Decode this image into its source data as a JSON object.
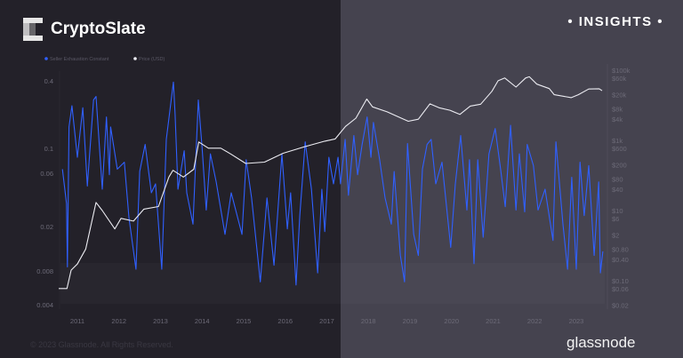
{
  "header": {
    "logo_text": "CryptoSlate",
    "badge": "• INSIGHTS •"
  },
  "footer": {
    "copyright": "© 2023 Glassnode. All Rights Reserved.",
    "brand": "glassnode"
  },
  "colors": {
    "sec": "#3060ff",
    "price": "#ececf2",
    "bg_left": "#232129",
    "bg_right": "#45434f"
  },
  "chart_data": {
    "type": "line",
    "legend": [
      "Seller Exhaustion Constant",
      "Price (USD)"
    ],
    "legend_placement": "top-left",
    "grid": false,
    "x_ticks": [
      "2011",
      "2012",
      "2013",
      "2014",
      "2015",
      "2016",
      "2017",
      "2018",
      "2019",
      "2020",
      "2021",
      "2022",
      "2023"
    ],
    "y_left": {
      "scale": "log",
      "ticks": [
        "0.4",
        "0.1",
        "0.06",
        "0.02",
        "0.008",
        "0.004"
      ],
      "tick_values": [
        0.4,
        0.1,
        0.06,
        0.02,
        0.008,
        0.004
      ]
    },
    "y_right": {
      "scale": "log",
      "ticks": [
        "$100k",
        "$60k",
        "$20k",
        "$8k",
        "$4k",
        "$1k",
        "$600",
        "$200",
        "$80",
        "$40",
        "$10",
        "$6",
        "$2",
        "$0.80",
        "$0.40",
        "$0.10",
        "$0.06",
        "$0.02"
      ],
      "tick_values": [
        100000,
        60000,
        20000,
        8000,
        4000,
        1000,
        600,
        200,
        80,
        40,
        10,
        6,
        2,
        0.8,
        0.4,
        0.1,
        0.06,
        0.02
      ]
    },
    "series": [
      {
        "name": "Seller Exhaustion Constant",
        "axis": "left",
        "points": [
          [
            2010.64,
            0.065
          ],
          [
            2010.74,
            0.032
          ],
          [
            2010.76,
            0.0087
          ],
          [
            2010.8,
            0.155
          ],
          [
            2010.87,
            0.24
          ],
          [
            2011.0,
            0.083
          ],
          [
            2011.13,
            0.23
          ],
          [
            2011.24,
            0.046
          ],
          [
            2011.39,
            0.27
          ],
          [
            2011.45,
            0.29
          ],
          [
            2011.6,
            0.043
          ],
          [
            2011.7,
            0.19
          ],
          [
            2011.77,
            0.058
          ],
          [
            2011.8,
            0.155
          ],
          [
            2011.96,
            0.065
          ],
          [
            2012.13,
            0.075
          ],
          [
            2012.24,
            0.024
          ],
          [
            2012.41,
            0.0083
          ],
          [
            2012.5,
            0.062
          ],
          [
            2012.63,
            0.108
          ],
          [
            2012.78,
            0.04
          ],
          [
            2012.88,
            0.048
          ],
          [
            2013.03,
            0.0083
          ],
          [
            2013.14,
            0.12
          ],
          [
            2013.31,
            0.39
          ],
          [
            2013.35,
            0.2
          ],
          [
            2013.42,
            0.043
          ],
          [
            2013.57,
            0.095
          ],
          [
            2013.63,
            0.04
          ],
          [
            2013.78,
            0.021
          ],
          [
            2013.91,
            0.27
          ],
          [
            2014.0,
            0.1
          ],
          [
            2014.1,
            0.028
          ],
          [
            2014.2,
            0.089
          ],
          [
            2014.34,
            0.05
          ],
          [
            2014.55,
            0.017
          ],
          [
            2014.7,
            0.04
          ],
          [
            2014.96,
            0.017
          ],
          [
            2015.06,
            0.079
          ],
          [
            2015.19,
            0.036
          ],
          [
            2015.4,
            0.0064
          ],
          [
            2015.56,
            0.036
          ],
          [
            2015.73,
            0.009
          ],
          [
            2015.92,
            0.089
          ],
          [
            2016.05,
            0.019
          ],
          [
            2016.13,
            0.04
          ],
          [
            2016.26,
            0.006
          ],
          [
            2016.35,
            0.025
          ],
          [
            2016.48,
            0.114
          ],
          [
            2016.63,
            0.043
          ],
          [
            2016.78,
            0.0077
          ],
          [
            2016.88,
            0.043
          ],
          [
            2016.95,
            0.018
          ],
          [
            2017.05,
            0.083
          ],
          [
            2017.16,
            0.048
          ],
          [
            2017.27,
            0.083
          ],
          [
            2017.33,
            0.048
          ],
          [
            2017.44,
            0.12
          ],
          [
            2017.52,
            0.038
          ],
          [
            2017.65,
            0.13
          ],
          [
            2017.74,
            0.058
          ],
          [
            2017.85,
            0.108
          ],
          [
            2017.97,
            0.19
          ],
          [
            2018.06,
            0.083
          ],
          [
            2018.12,
            0.17
          ],
          [
            2018.27,
            0.079
          ],
          [
            2018.4,
            0.036
          ],
          [
            2018.55,
            0.021
          ],
          [
            2018.62,
            0.062
          ],
          [
            2018.77,
            0.011
          ],
          [
            2018.87,
            0.0064
          ],
          [
            2018.94,
            0.11
          ],
          [
            2019.09,
            0.017
          ],
          [
            2019.2,
            0.011
          ],
          [
            2019.3,
            0.065
          ],
          [
            2019.41,
            0.108
          ],
          [
            2019.51,
            0.12
          ],
          [
            2019.62,
            0.048
          ],
          [
            2019.77,
            0.075
          ],
          [
            2019.98,
            0.013
          ],
          [
            2020.09,
            0.048
          ],
          [
            2020.22,
            0.13
          ],
          [
            2020.37,
            0.028
          ],
          [
            2020.43,
            0.079
          ],
          [
            2020.54,
            0.0093
          ],
          [
            2020.63,
            0.079
          ],
          [
            2020.76,
            0.016
          ],
          [
            2020.9,
            0.089
          ],
          [
            2021.05,
            0.15
          ],
          [
            2021.18,
            0.065
          ],
          [
            2021.29,
            0.03
          ],
          [
            2021.42,
            0.16
          ],
          [
            2021.55,
            0.028
          ],
          [
            2021.63,
            0.089
          ],
          [
            2021.76,
            0.027
          ],
          [
            2021.82,
            0.108
          ],
          [
            2021.97,
            0.07
          ],
          [
            2022.08,
            0.028
          ],
          [
            2022.25,
            0.043
          ],
          [
            2022.44,
            0.015
          ],
          [
            2022.51,
            0.114
          ],
          [
            2022.68,
            0.021
          ],
          [
            2022.79,
            0.0083
          ],
          [
            2022.89,
            0.055
          ],
          [
            2023.0,
            0.0083
          ],
          [
            2023.09,
            0.075
          ],
          [
            2023.19,
            0.025
          ],
          [
            2023.3,
            0.07
          ],
          [
            2023.43,
            0.011
          ],
          [
            2023.54,
            0.05
          ],
          [
            2023.58,
            0.0077
          ],
          [
            2023.64,
            0.012
          ]
        ]
      },
      {
        "name": "Price (USD)",
        "axis": "right",
        "points": [
          [
            2010.55,
            0.06
          ],
          [
            2010.75,
            0.06
          ],
          [
            2010.85,
            0.2
          ],
          [
            2011.0,
            0.3
          ],
          [
            2011.2,
            0.8
          ],
          [
            2011.45,
            17
          ],
          [
            2011.6,
            10
          ],
          [
            2011.9,
            3
          ],
          [
            2012.05,
            6
          ],
          [
            2012.35,
            5
          ],
          [
            2012.6,
            11
          ],
          [
            2012.95,
            13
          ],
          [
            2013.2,
            90
          ],
          [
            2013.3,
            140
          ],
          [
            2013.55,
            90
          ],
          [
            2013.8,
            150
          ],
          [
            2013.92,
            900
          ],
          [
            2014.15,
            600
          ],
          [
            2014.45,
            600
          ],
          [
            2014.7,
            400
          ],
          [
            2015.05,
            220
          ],
          [
            2015.5,
            240
          ],
          [
            2015.95,
            430
          ],
          [
            2016.45,
            650
          ],
          [
            2016.95,
            950
          ],
          [
            2017.2,
            1100
          ],
          [
            2017.45,
            2500
          ],
          [
            2017.7,
            4300
          ],
          [
            2017.96,
            15000
          ],
          [
            2018.1,
            9000
          ],
          [
            2018.45,
            6500
          ],
          [
            2018.85,
            4000
          ],
          [
            2018.96,
            3500
          ],
          [
            2019.2,
            4000
          ],
          [
            2019.48,
            11000
          ],
          [
            2019.7,
            8500
          ],
          [
            2019.96,
            7200
          ],
          [
            2020.2,
            5500
          ],
          [
            2020.45,
            9500
          ],
          [
            2020.7,
            10700
          ],
          [
            2020.97,
            25000
          ],
          [
            2021.12,
            50000
          ],
          [
            2021.28,
            60000
          ],
          [
            2021.55,
            33000
          ],
          [
            2021.78,
            60000
          ],
          [
            2021.87,
            65000
          ],
          [
            2022.05,
            40000
          ],
          [
            2022.35,
            30000
          ],
          [
            2022.47,
            20000
          ],
          [
            2022.88,
            16500
          ],
          [
            2023.05,
            20000
          ],
          [
            2023.3,
            29000
          ],
          [
            2023.55,
            29500
          ],
          [
            2023.62,
            26000
          ]
        ]
      }
    ]
  }
}
